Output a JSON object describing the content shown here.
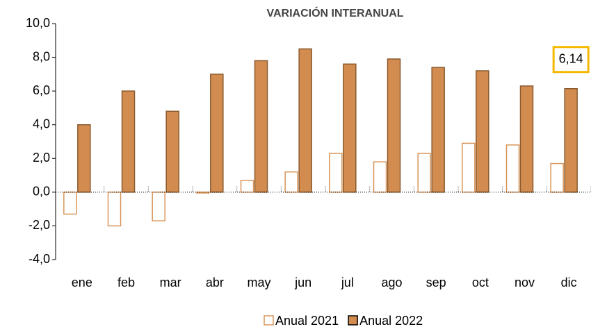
{
  "chart_data": {
    "type": "bar",
    "title": "VARIACIÓN INTERANUAL",
    "categories": [
      "ene",
      "feb",
      "mar",
      "abr",
      "may",
      "jun",
      "jul",
      "ago",
      "sep",
      "oct",
      "nov",
      "dic"
    ],
    "series": [
      {
        "name": "Anual 2021",
        "color": "#d8955a",
        "filled": false,
        "values": [
          -1.3,
          -2.0,
          -1.7,
          -0.05,
          0.7,
          1.2,
          2.3,
          1.8,
          2.3,
          2.9,
          2.8,
          1.7
        ]
      },
      {
        "name": "Anual 2022",
        "color": "#d28c50",
        "filled": true,
        "values": [
          4.0,
          6.0,
          4.8,
          7.0,
          7.8,
          8.5,
          7.6,
          7.9,
          7.4,
          7.2,
          6.3,
          6.14
        ],
        "value_labels": [
          null,
          null,
          null,
          null,
          null,
          null,
          null,
          null,
          null,
          null,
          null,
          "6,14"
        ]
      }
    ],
    "ylim": [
      -4,
      10
    ],
    "yticks": [
      {
        "value": -4,
        "label": "-4,0"
      },
      {
        "value": -2,
        "label": "-2,0"
      },
      {
        "value": 0,
        "label": "0,0"
      },
      {
        "value": 2,
        "label": "2,0"
      },
      {
        "value": 4,
        "label": "4,0"
      },
      {
        "value": 6,
        "label": "6,0"
      },
      {
        "value": 8,
        "label": "8,0"
      },
      {
        "value": 10,
        "label": "10,0"
      }
    ],
    "grid": false,
    "legend": "bottom"
  }
}
